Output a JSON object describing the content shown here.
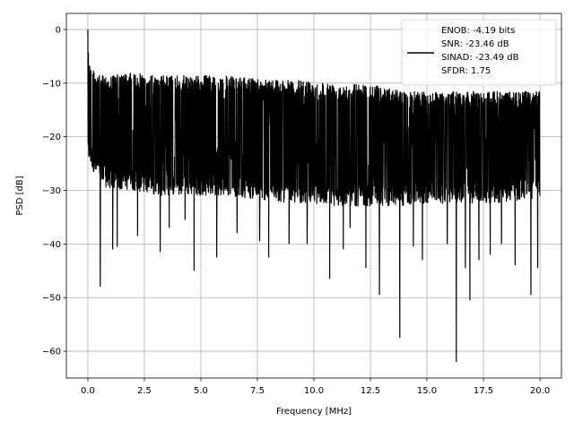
{
  "chart_data": {
    "type": "line",
    "title": "",
    "xlabel": "Frequency [MHz]",
    "ylabel": "PSD [dB]",
    "xlim": [
      -0.95,
      20.95
    ],
    "ylim": [
      -65,
      3
    ],
    "xticks": [
      0.0,
      2.5,
      5.0,
      7.5,
      10.0,
      12.5,
      15.0,
      17.5,
      20.0
    ],
    "xtick_labels": [
      "0.0",
      "2.5",
      "5.0",
      "7.5",
      "10.0",
      "12.5",
      "15.0",
      "17.5",
      "20.0"
    ],
    "yticks": [
      0,
      -10,
      -20,
      -30,
      -40,
      -50,
      -60
    ],
    "ytick_labels": [
      "0",
      "−10",
      "−20",
      "−30",
      "−40",
      "−50",
      "−60"
    ],
    "grid": true,
    "legend_position": "top-right",
    "legend_entries": [
      "ENOB: -4.19 bits",
      "SNR: -23.46 dB",
      "SINAD: -23.49 dB",
      "SFDR: 1.75"
    ],
    "series": [
      {
        "color": "#000000",
        "x_range": [
          0.0,
          20.0
        ],
        "envelope": {
          "upper_x": [
            0.0,
            0.03,
            0.1,
            0.5,
            1.0,
            2.0,
            3.0,
            4.0,
            5.0,
            6.0,
            7.0,
            8.0,
            9.0,
            10.0,
            11.0,
            12.0,
            13.0,
            14.0,
            15.0,
            16.0,
            17.0,
            18.0,
            19.0,
            20.0
          ],
          "upper_y": [
            0.0,
            -2.0,
            -6.5,
            -8.5,
            -8.5,
            -8.0,
            -8.5,
            -8.5,
            -8.5,
            -8.5,
            -9.0,
            -9.0,
            -9.5,
            -9.5,
            -10.0,
            -10.0,
            -10.5,
            -11.5,
            -11.5,
            -11.5,
            -11.5,
            -11.5,
            -11.5,
            -11.5
          ],
          "lower_x": [
            0.0,
            0.5,
            1.0,
            2.0,
            3.0,
            4.0,
            5.0,
            6.0,
            7.0,
            8.0,
            9.0,
            10.0,
            11.0,
            12.0,
            13.0,
            14.0,
            15.0,
            16.0,
            17.0,
            18.0,
            19.0,
            20.0
          ],
          "lower_y": [
            -24.0,
            -29.0,
            -30.0,
            -30.0,
            -31.0,
            -31.0,
            -31.0,
            -31.0,
            -31.5,
            -32.0,
            -32.5,
            -32.5,
            -33.0,
            -33.0,
            -33.0,
            -33.0,
            -32.5,
            -32.5,
            -32.5,
            -32.5,
            -32.0,
            -31.5
          ]
        },
        "dips": [
          [
            0.55,
            -48.0
          ],
          [
            1.1,
            -41.0
          ],
          [
            1.3,
            -40.5
          ],
          [
            2.2,
            -38.5
          ],
          [
            3.2,
            -41.5
          ],
          [
            3.6,
            -37.0
          ],
          [
            4.3,
            -35.5
          ],
          [
            4.7,
            -45.0
          ],
          [
            5.7,
            -42.5
          ],
          [
            6.6,
            -38.0
          ],
          [
            7.6,
            -39.5
          ],
          [
            8.0,
            -42.5
          ],
          [
            8.9,
            -40.0
          ],
          [
            9.7,
            -40.0
          ],
          [
            10.7,
            -46.5
          ],
          [
            11.3,
            -41.0
          ],
          [
            11.6,
            -37.0
          ],
          [
            12.3,
            -44.5
          ],
          [
            12.9,
            -49.5
          ],
          [
            13.8,
            -57.5
          ],
          [
            14.4,
            -40.5
          ],
          [
            14.8,
            -43.0
          ],
          [
            15.9,
            -40.0
          ],
          [
            16.3,
            -62.0
          ],
          [
            16.7,
            -44.5
          ],
          [
            16.9,
            -50.5
          ],
          [
            17.3,
            -43.0
          ],
          [
            17.8,
            -42.0
          ],
          [
            18.3,
            -40.0
          ],
          [
            18.9,
            -44.0
          ],
          [
            19.6,
            -49.5
          ],
          [
            19.9,
            -44.5
          ]
        ]
      }
    ]
  }
}
